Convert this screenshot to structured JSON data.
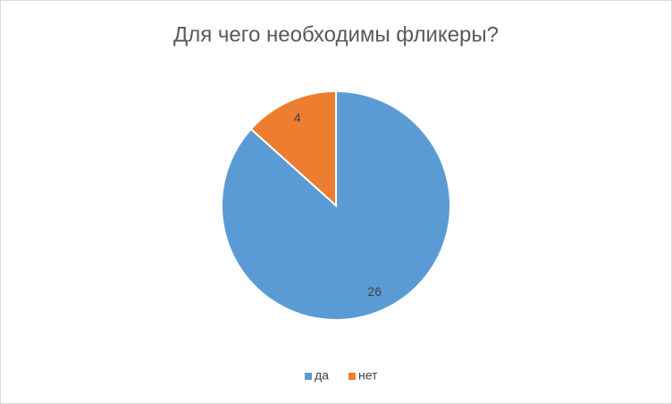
{
  "chart_data": {
    "type": "pie",
    "title": "Для чего необходимы фликеры?",
    "categories": [
      "да",
      "нет"
    ],
    "values": [
      26,
      4
    ],
    "colors": [
      "#5b9bd5",
      "#ed7d31"
    ],
    "legend": "bottom"
  }
}
